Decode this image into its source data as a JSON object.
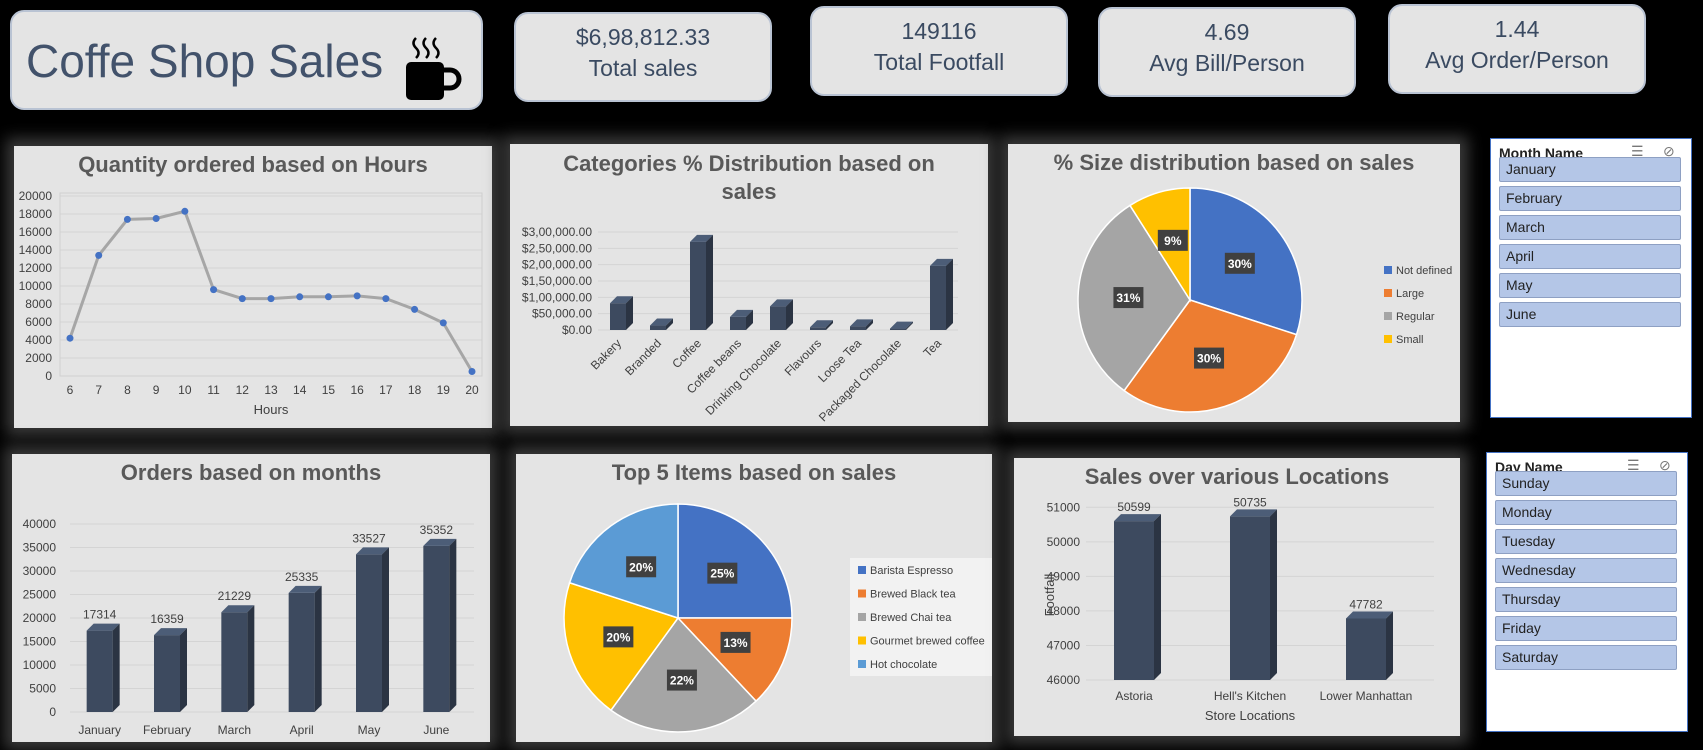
{
  "header": {
    "title": "Coffe Shop Sales",
    "cup_icon": "coffee-cup-icon"
  },
  "kpis": [
    {
      "value": "$6,98,812.33",
      "label": "Total sales"
    },
    {
      "value": "149116",
      "label": "Total Footfall"
    },
    {
      "value": "4.69",
      "label": "Avg Bill/Person"
    },
    {
      "value": "1.44",
      "label": "Avg Order/Person"
    }
  ],
  "slicers": {
    "month": {
      "title": "Month Name",
      "items": [
        "January",
        "February",
        "March",
        "April",
        "May",
        "June"
      ]
    },
    "day": {
      "title": "Day Name",
      "items": [
        "Sunday",
        "Monday",
        "Tuesday",
        "Wednesday",
        "Thursday",
        "Friday",
        "Saturday"
      ]
    }
  },
  "chart_data": [
    {
      "id": "hours",
      "type": "line",
      "title": "Quantity ordered based on Hours",
      "xlabel": "Hours",
      "ylabel": "",
      "x": [
        "6",
        "7",
        "8",
        "9",
        "10",
        "11",
        "12",
        "13",
        "14",
        "15",
        "16",
        "17",
        "18",
        "19",
        "20"
      ],
      "values": [
        4200,
        13400,
        17400,
        17500,
        18300,
        9600,
        8600,
        8600,
        8800,
        8800,
        8900,
        8600,
        7400,
        5900,
        500
      ],
      "ylim": [
        0,
        20000
      ],
      "yticks": [
        "0",
        "2000",
        "4000",
        "6000",
        "8000",
        "10000",
        "12000",
        "14000",
        "16000",
        "18000",
        "20000"
      ],
      "color": "#a6a6a6",
      "marker_color": "#4472c4"
    },
    {
      "id": "categories",
      "type": "bar",
      "title": "Categories % Distribution based on sales",
      "title_lines": [
        "Categories % Distribution based on",
        "sales"
      ],
      "categories": [
        "Bakery",
        "Branded",
        "Coffee",
        "Coffee beans",
        "Drinking Chocolate",
        "Flavours",
        "Loose Tea",
        "Packaged Chocolate",
        "Tea"
      ],
      "values": [
        82000,
        13600,
        269900,
        40100,
        72400,
        8400,
        11200,
        4400,
        196400
      ],
      "ylim": [
        0,
        300000
      ],
      "yticks": [
        "$0.00",
        "$50,000.00",
        "$1,00,000.00",
        "$1,50,000.00",
        "$2,00,000.00",
        "$2,50,000.00",
        "$3,00,000.00"
      ],
      "color": "#3d4a5f"
    },
    {
      "id": "sizes",
      "type": "pie",
      "title": "% Size distribution based on sales",
      "labels": [
        "Not defined",
        "Large",
        "Regular",
        "Small"
      ],
      "values": [
        30,
        30,
        31,
        9
      ],
      "display": [
        "30%",
        "30%",
        "31%",
        "9%"
      ],
      "colors": [
        "#4472c4",
        "#ed7d31",
        "#a5a5a5",
        "#ffc000"
      ]
    },
    {
      "id": "months",
      "type": "bar",
      "title": "Orders based on months",
      "categories": [
        "January",
        "February",
        "March",
        "April",
        "May",
        "June"
      ],
      "values": [
        17314,
        16359,
        21229,
        25335,
        33527,
        35352
      ],
      "ylim": [
        0,
        40000
      ],
      "yticks": [
        "0",
        "5000",
        "10000",
        "15000",
        "20000",
        "25000",
        "30000",
        "35000",
        "40000"
      ],
      "color": "#3d4a5f"
    },
    {
      "id": "top5",
      "type": "pie",
      "title": "Top 5 Items based on sales",
      "labels": [
        "Barista Espresso",
        "Brewed Black tea",
        "Brewed Chai tea",
        "Gourmet brewed coffee",
        "Hot chocolate"
      ],
      "values": [
        25,
        13,
        22,
        20,
        20
      ],
      "display": [
        "25%",
        "13%",
        "22%",
        "20%",
        "20%"
      ],
      "colors": [
        "#4472c4",
        "#ed7d31",
        "#a5a5a5",
        "#ffc000",
        "#5b9bd5"
      ]
    },
    {
      "id": "locations",
      "type": "bar",
      "title": "Sales over various Locations",
      "xlabel": "Store Locations",
      "ylabel": "Footfall",
      "categories": [
        "Astoria",
        "Hell's Kitchen",
        "Lower Manhattan"
      ],
      "values": [
        50599,
        50735,
        47782
      ],
      "ylim": [
        46000,
        51500
      ],
      "yticks": [
        "46000",
        "47000",
        "48000",
        "49000",
        "50000",
        "51000"
      ],
      "color": "#3d4a5f"
    }
  ]
}
